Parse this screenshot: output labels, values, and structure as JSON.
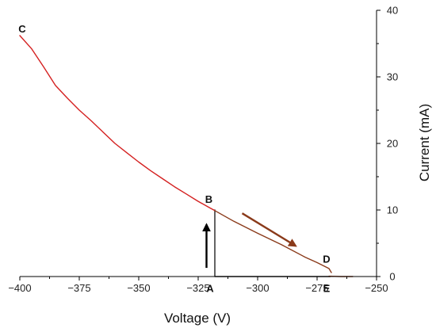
{
  "chart_data": {
    "type": "line",
    "xlabel": "Voltage (V)",
    "ylabel": "Current (mA)",
    "xlim": [
      -400,
      -250
    ],
    "ylim": [
      0,
      40
    ],
    "x_ticks": [
      -400,
      -375,
      -350,
      -325,
      -300,
      -275,
      -250
    ],
    "x_tick_labels": [
      "−400",
      "−375",
      "−350",
      "−325",
      "−300",
      "−275",
      "−250"
    ],
    "y_ticks": [
      0,
      10,
      20,
      30,
      40
    ],
    "y_tick_labels": [
      "0",
      "10",
      "20",
      "30",
      "40"
    ],
    "y_axis_side": "right",
    "grid": false,
    "series": [
      {
        "color": "#222222",
        "x": [
          -318,
          -318,
          -269.5
        ],
        "y": [
          10,
          0,
          0
        ]
      },
      {
        "color": "#d42020",
        "x": [
          -400,
          -395,
          -390,
          -385,
          -380,
          -375,
          -370,
          -365,
          -360,
          -355,
          -350,
          -345,
          -340,
          -335,
          -330,
          -325,
          -320,
          -318
        ],
        "y": [
          36.2,
          34.2,
          31.5,
          28.7,
          26.8,
          25.0,
          23.4,
          21.7,
          20.0,
          18.6,
          17.2,
          15.9,
          14.7,
          13.5,
          12.4,
          11.3,
          10.3,
          9.9
        ]
      },
      {
        "color": "#8a3a1a",
        "x": [
          -318,
          -310,
          -300,
          -290,
          -280,
          -275,
          -270,
          -269
        ],
        "y": [
          9.9,
          8.3,
          6.5,
          4.8,
          2.9,
          2.1,
          1.2,
          0.6
        ]
      },
      {
        "color": "#8a3a1a",
        "x": [
          -270,
          -265,
          -260
        ],
        "y": [
          0.05,
          0.0,
          0.0
        ]
      }
    ],
    "annotations": [
      {
        "text": "C",
        "x": -399,
        "y": 37.2
      },
      {
        "text": "B",
        "x": -320.5,
        "y": 11.6
      },
      {
        "text": "A",
        "x": -320,
        "y": -1.8
      },
      {
        "text": "D",
        "x": -271,
        "y": 2.6
      },
      {
        "text": "E",
        "x": -271,
        "y": -1.8
      }
    ],
    "arrows": [
      {
        "color": "#000000",
        "x": [
          -321.5,
          -321.5
        ],
        "y": [
          1.3,
          7.8
        ]
      },
      {
        "color": "#8a3a1a",
        "x": [
          -306.5,
          -284
        ],
        "y": [
          9.5,
          4.6
        ]
      }
    ]
  }
}
